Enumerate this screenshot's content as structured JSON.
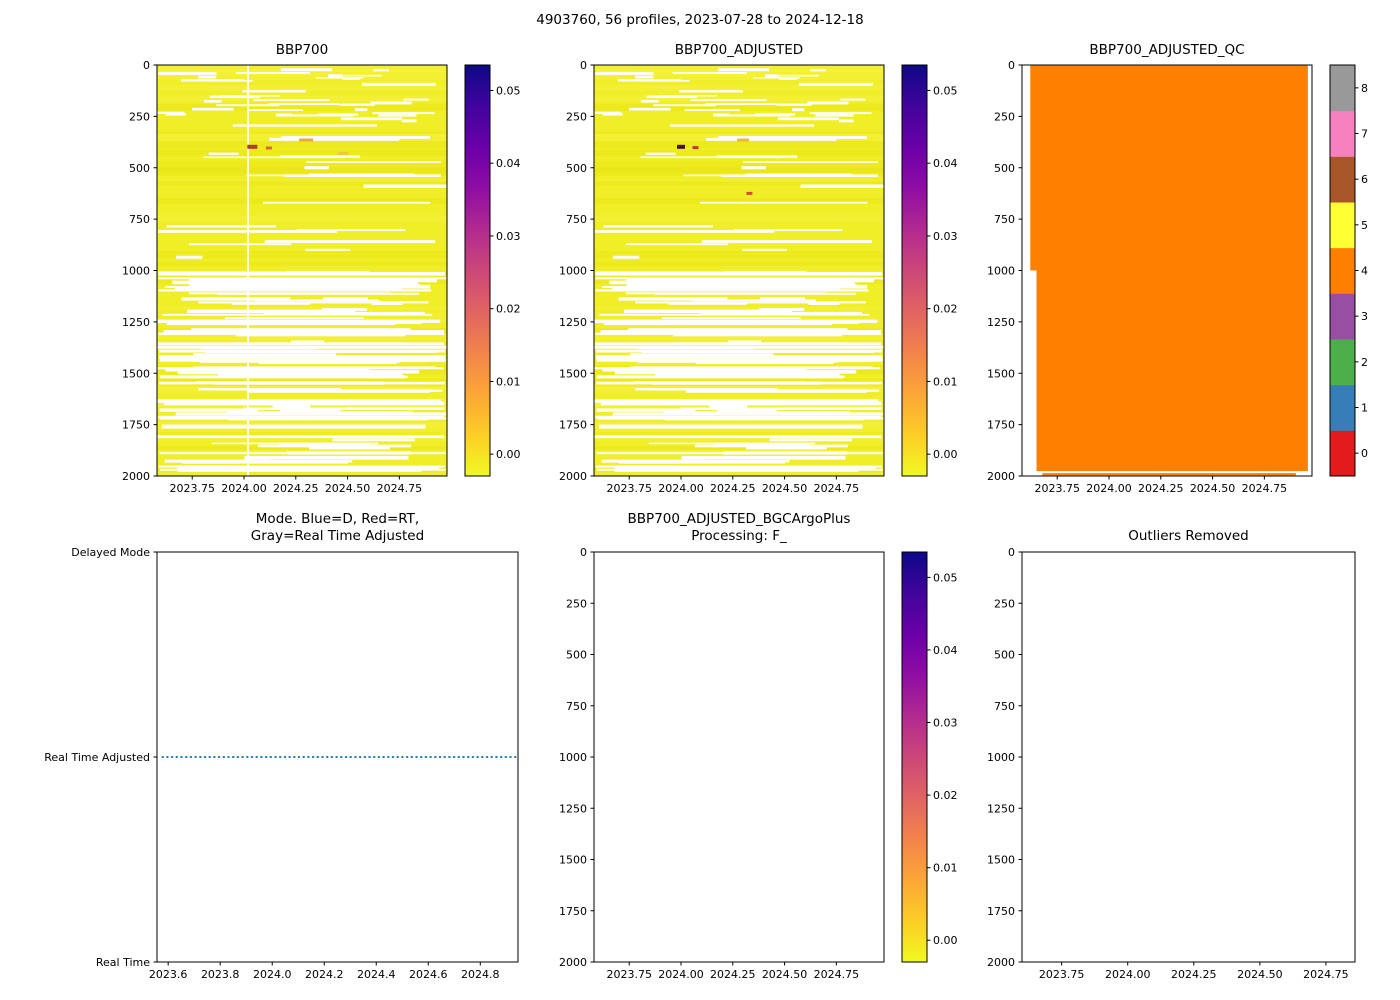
{
  "figure_title": "4903760, 56 profiles, 2023-07-28 to 2024-12-18",
  "chart_data": [
    {
      "id": "bbp700",
      "type": "heatmap",
      "title": "BBP700",
      "x_axis": {
        "lim": [
          2023.58,
          2024.98
        ],
        "tick_labels": [
          "2023.75",
          "2024.00",
          "2024.25",
          "2024.50",
          "2024.75"
        ],
        "tick_values": [
          2023.75,
          2024.0,
          2024.25,
          2024.5,
          2024.75
        ]
      },
      "y_axis": {
        "lim": [
          2000,
          0
        ],
        "tick_labels": [
          "0",
          "250",
          "500",
          "750",
          "1000",
          "1250",
          "1500",
          "1750",
          "2000"
        ],
        "tick_values": [
          0,
          250,
          500,
          750,
          1000,
          1250,
          1500,
          1750,
          2000
        ]
      },
      "colorbar": {
        "style": "continuous",
        "cmap": "plasma_r",
        "vmin": -0.003,
        "vmax": 0.0535,
        "tick_labels": [
          "0.00",
          "0.01",
          "0.02",
          "0.03",
          "0.04",
          "0.05"
        ],
        "tick_values": [
          0,
          0.01,
          0.02,
          0.03,
          0.04,
          0.05
        ]
      },
      "field": {
        "summary": "56 profiles 0-2000 dbar; BBP700 mostly ~0.0005 m^-1 (yellow) with white missing-data streaks, denser below 1000 dbar; small elevated patch near 400 dbar around 2024.0-2024.1",
        "base_color": "#f0ee26",
        "missing_color": "#ffffff",
        "streak_seed": 12345,
        "vertical_gap_x": 2024.02,
        "anomalies": [
          {
            "x": 2024.04,
            "depth": 398,
            "w": 10,
            "h": 4,
            "color": "#b13a2a"
          },
          {
            "x": 2024.12,
            "depth": 404,
            "w": 6,
            "h": 3,
            "color": "#d8663a"
          },
          {
            "x": 2024.3,
            "depth": 365,
            "w": 14,
            "h": 3,
            "color": "#e8a93c"
          },
          {
            "x": 2024.48,
            "depth": 430,
            "w": 10,
            "h": 3,
            "color": "#ecc83a"
          }
        ]
      }
    },
    {
      "id": "bbp700_adjusted",
      "type": "heatmap",
      "title": "BBP700_ADJUSTED",
      "x_axis": {
        "lim": [
          2023.58,
          2024.98
        ],
        "tick_labels": [
          "2023.75",
          "2024.00",
          "2024.25",
          "2024.50",
          "2024.75"
        ],
        "tick_values": [
          2023.75,
          2024.0,
          2024.25,
          2024.5,
          2024.75
        ]
      },
      "y_axis": {
        "lim": [
          2000,
          0
        ],
        "tick_labels": [
          "0",
          "250",
          "500",
          "750",
          "1000",
          "1250",
          "1500",
          "1750",
          "2000"
        ],
        "tick_values": [
          0,
          250,
          500,
          750,
          1000,
          1250,
          1500,
          1750,
          2000
        ]
      },
      "colorbar": {
        "style": "continuous",
        "cmap": "plasma_r",
        "vmin": -0.003,
        "vmax": 0.0535,
        "tick_labels": [
          "0.00",
          "0.01",
          "0.02",
          "0.03",
          "0.04",
          "0.05"
        ],
        "tick_values": [
          0,
          0.01,
          0.02,
          0.03,
          0.04,
          0.05
        ]
      },
      "field": {
        "summary": "Adjusted BBP700; same pattern as raw: mostly ~0.0005 (yellow) with white gaps; dark elevated speck near 400 dbar at ~2024.0",
        "base_color": "#f0ee26",
        "missing_color": "#ffffff",
        "streak_seed": 12345,
        "vertical_gap_x": null,
        "anomalies": [
          {
            "x": 2024.0,
            "depth": 398,
            "w": 8,
            "h": 4,
            "color": "#4a0f2f"
          },
          {
            "x": 2024.07,
            "depth": 402,
            "w": 6,
            "h": 3,
            "color": "#c23a3a"
          },
          {
            "x": 2024.33,
            "depth": 625,
            "w": 6,
            "h": 3,
            "color": "#d84a3a"
          },
          {
            "x": 2024.3,
            "depth": 365,
            "w": 12,
            "h": 3,
            "color": "#eab83c"
          }
        ]
      }
    },
    {
      "id": "bbp700_adjusted_qc",
      "type": "heatmap_qc",
      "title": "BBP700_ADJUSTED_QC",
      "x_axis": {
        "lim": [
          2023.58,
          2024.98
        ],
        "tick_labels": [
          "2023.75",
          "2024.00",
          "2024.25",
          "2024.50",
          "2024.75"
        ],
        "tick_values": [
          2023.75,
          2024.0,
          2024.25,
          2024.5,
          2024.75
        ]
      },
      "y_axis": {
        "lim": [
          2000,
          0
        ],
        "tick_labels": [
          "0",
          "250",
          "500",
          "750",
          "1000",
          "1250",
          "1500",
          "1750",
          "2000"
        ],
        "tick_values": [
          0,
          250,
          500,
          750,
          1000,
          1250,
          1500,
          1750,
          2000
        ]
      },
      "colorbar": {
        "style": "discrete",
        "tick_labels": [
          "0",
          "1",
          "2",
          "3",
          "4",
          "5",
          "6",
          "7",
          "8"
        ],
        "tick_values": [
          0,
          1,
          2,
          3,
          4,
          5,
          6,
          7,
          8
        ],
        "colors": [
          "#e41a1c",
          "#377eb8",
          "#4daf4a",
          "#984ea3",
          "#ff7f00",
          "#ffff33",
          "#a65628",
          "#f781bf",
          "#999999"
        ]
      },
      "field": {
        "summary": "QC flag = 4 (orange) for essentially all points, 0-2000 dbar, full record",
        "qc_value": 4,
        "color": "#ff7f00",
        "x_range": [
          2023.62,
          2024.96
        ],
        "x_range_below_1000": [
          2023.65,
          2024.96
        ],
        "depth_range": [
          0,
          2000
        ]
      }
    },
    {
      "id": "mode",
      "type": "category_line",
      "title": "Mode. Blue=D, Red=RT,\nGray=Real Time Adjusted",
      "x_axis": {
        "lim": [
          2023.557,
          2024.945
        ],
        "tick_labels": [
          "2023.6",
          "2023.8",
          "2024.0",
          "2024.2",
          "2024.4",
          "2024.6",
          "2024.8"
        ],
        "tick_values": [
          2023.6,
          2023.8,
          2024.0,
          2024.2,
          2024.4,
          2024.6,
          2024.8
        ]
      },
      "y_axis": {
        "categories": [
          "Delayed Mode",
          "Real Time Adjusted",
          "Real Time"
        ]
      },
      "series": [
        {
          "name": "mode",
          "color": "#1f77b4",
          "linestyle": "dotted",
          "y_category": "Real Time Adjusted",
          "x_start": 2023.578,
          "x_end": 2024.94
        }
      ]
    },
    {
      "id": "bgcargoplus",
      "type": "heatmap",
      "title": "BBP700_ADJUSTED_BGCArgoPlus\nProcessing: F_",
      "empty": true,
      "x_axis": {
        "lim": [
          2023.58,
          2024.98
        ],
        "tick_labels": [
          "2023.75",
          "2024.00",
          "2024.25",
          "2024.50",
          "2024.75"
        ],
        "tick_values": [
          2023.75,
          2024.0,
          2024.25,
          2024.5,
          2024.75
        ]
      },
      "y_axis": {
        "lim": [
          2000,
          0
        ],
        "tick_labels": [
          "0",
          "250",
          "500",
          "750",
          "1000",
          "1250",
          "1500",
          "1750",
          "2000"
        ],
        "tick_values": [
          0,
          250,
          500,
          750,
          1000,
          1250,
          1500,
          1750,
          2000
        ]
      },
      "colorbar": {
        "style": "continuous",
        "cmap": "plasma_r",
        "vmin": -0.003,
        "vmax": 0.0535,
        "tick_labels": [
          "0.00",
          "0.01",
          "0.02",
          "0.03",
          "0.04",
          "0.05"
        ],
        "tick_values": [
          0,
          0.01,
          0.02,
          0.03,
          0.04,
          0.05
        ]
      },
      "field": {
        "summary": "empty axes - no BGCArgoPlus-processed data plotted"
      }
    },
    {
      "id": "outliers",
      "type": "scatter",
      "title": "Outliers Removed",
      "empty": true,
      "x_axis": {
        "lim": [
          2023.6,
          2024.86
        ],
        "tick_labels": [
          "2023.75",
          "2024.00",
          "2024.25",
          "2024.50",
          "2024.75"
        ],
        "tick_values": [
          2023.75,
          2024.0,
          2024.25,
          2024.5,
          2024.75
        ]
      },
      "y_axis": {
        "lim": [
          2000,
          0
        ],
        "tick_labels": [
          "0",
          "250",
          "500",
          "750",
          "1000",
          "1250",
          "1500",
          "1750",
          "2000"
        ],
        "tick_values": [
          0,
          250,
          500,
          750,
          1000,
          1250,
          1500,
          1750,
          2000
        ]
      },
      "field": {
        "summary": "empty axes - no outliers removed"
      }
    }
  ]
}
